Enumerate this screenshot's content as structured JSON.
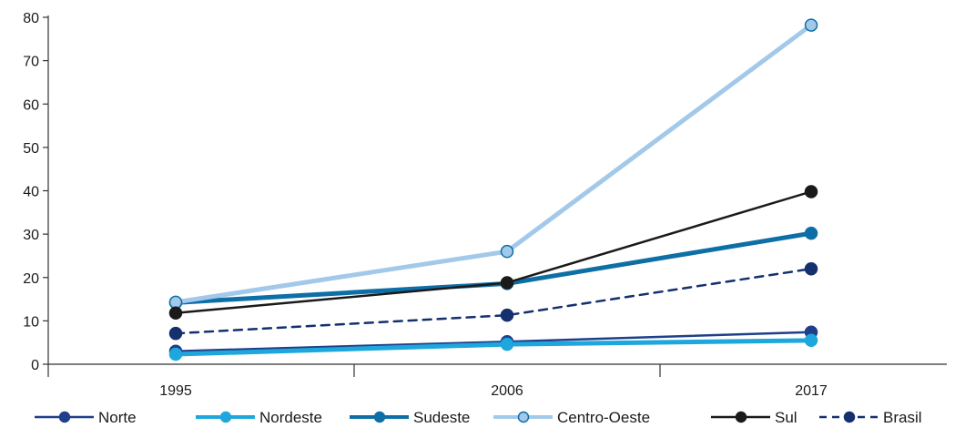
{
  "chart_data": {
    "type": "line",
    "title": "",
    "xlabel": "",
    "ylabel": "",
    "categories": [
      "1995",
      "2006",
      "2017"
    ],
    "ylim": [
      0,
      80
    ],
    "yticks": [
      0,
      10,
      20,
      30,
      40,
      50,
      60,
      70,
      80
    ],
    "grid": false,
    "legend_position": "bottom",
    "series": [
      {
        "name": "Norte",
        "values": [
          3.0,
          5.2,
          7.4
        ],
        "color": "#1f3f8a",
        "line_width": 2.5,
        "dashed": false,
        "marker_fill": "#1f3f8a",
        "marker_stroke": "#1f3f8a"
      },
      {
        "name": "Nordeste",
        "values": [
          2.3,
          4.6,
          5.5
        ],
        "color": "#1ea7dc",
        "line_width": 5,
        "dashed": false,
        "marker_fill": "#1ea7dc",
        "marker_stroke": "#1ea7dc"
      },
      {
        "name": "Sudeste",
        "values": [
          14.2,
          18.6,
          30.2
        ],
        "color": "#0e6fa6",
        "line_width": 5,
        "dashed": false,
        "marker_fill": "#0e6fa6",
        "marker_stroke": "#0e6fa6"
      },
      {
        "name": "Centro-Oeste",
        "values": [
          14.3,
          26.0,
          78.2
        ],
        "color": "#a3c9ea",
        "line_width": 5,
        "dashed": false,
        "marker_fill": "#a3c9ea",
        "marker_stroke": "#0e6fa6"
      },
      {
        "name": "Sul",
        "values": [
          11.8,
          18.8,
          39.8
        ],
        "color": "#1a1a1a",
        "line_width": 2.5,
        "dashed": false,
        "marker_fill": "#1a1a1a",
        "marker_stroke": "#1a1a1a"
      },
      {
        "name": "Brasil",
        "values": [
          7.1,
          11.3,
          22.0
        ],
        "color": "#14306e",
        "line_width": 2.5,
        "dashed": true,
        "marker_fill": "#14306e",
        "marker_stroke": "#14306e"
      }
    ]
  }
}
